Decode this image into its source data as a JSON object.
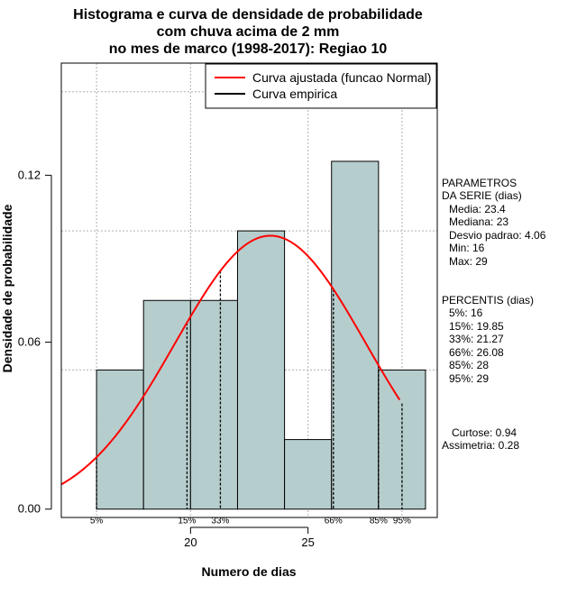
{
  "chart_data": {
    "type": "bar",
    "title_lines": [
      "Histograma e curva de densidade de probabilidade",
      "com chuva acima de 2 mm",
      "no mes de marco (1998-2017): Regiao 10"
    ],
    "xlabel": "Numero de dias",
    "ylabel": "Densidade de probabilidade",
    "xlim": [
      14.5,
      30.5
    ],
    "ylim": [
      -0.003,
      0.1603
    ],
    "xticks": [
      20,
      25
    ],
    "yticks": [
      0.0,
      0.06,
      0.12
    ],
    "ytick_labels": [
      "0.00",
      "0.06",
      "0.12"
    ],
    "bars": [
      {
        "start": 16,
        "end": 18,
        "value": 0.05
      },
      {
        "start": 18,
        "end": 20,
        "value": 0.075
      },
      {
        "start": 20,
        "end": 22,
        "value": 0.075
      },
      {
        "start": 22,
        "end": 24,
        "value": 0.1
      },
      {
        "start": 24,
        "end": 26,
        "value": 0.025
      },
      {
        "start": 26,
        "end": 28,
        "value": 0.125
      },
      {
        "start": 28,
        "end": 30,
        "value": 0.05
      }
    ],
    "normal_curve": {
      "mean": 23.4,
      "sd": 4.06,
      "from": 14.5,
      "to": 28.9
    },
    "grid_x": [
      16,
      20,
      25,
      29
    ],
    "grid_y": [
      0.05,
      0.1,
      0.15
    ],
    "percentiles": [
      {
        "label": "5%",
        "x": 16
      },
      {
        "label": "15%",
        "x": 19.85
      },
      {
        "label": "33%",
        "x": 21.27
      },
      {
        "label": "66%",
        "x": 26.08
      },
      {
        "label": "85%",
        "x": 28
      },
      {
        "label": "95%",
        "x": 29
      }
    ],
    "legend": {
      "placement": "top-right",
      "items": [
        {
          "label": "Curva ajustada (funcao Normal)",
          "color": "#ff0000"
        },
        {
          "label": "Curva empirica",
          "color": "#000000"
        }
      ]
    },
    "colors": {
      "bar_fill": "#b6cdcd",
      "curve": "#ff0000",
      "grid": "#b0b0b0"
    }
  },
  "side_panel": {
    "parametros": [
      "PARAMETROS",
      "DA SERIE (dias)",
      "Media: 23.4",
      "Mediana: 23",
      "Desvio padrao: 4.06",
      "Min: 16",
      "Max: 29"
    ],
    "percentis": [
      "PERCENTIS (dias)",
      "5%: 16",
      "15%: 19.85",
      "33%: 21.27",
      "66%: 26.08",
      "85%: 28",
      "95%: 29"
    ],
    "extra": [
      "Curtose: 0.94",
      "Assimetria: 0.28"
    ]
  }
}
